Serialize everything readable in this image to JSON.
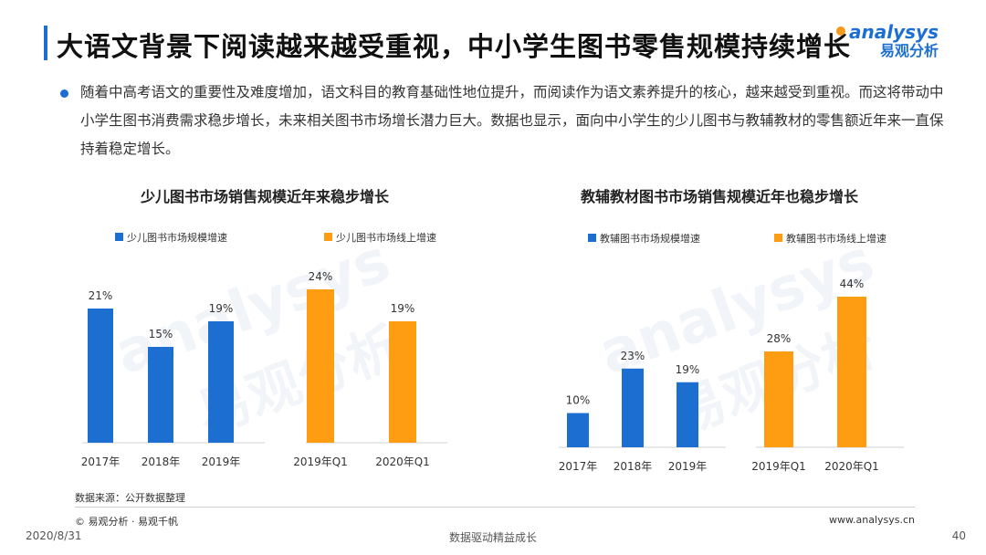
{
  "header": {
    "title": "大语文背景下阅读越来越受重视，中小学生图书零售规模持续增长",
    "logo_en": "analysys",
    "logo_cn": "易观分析"
  },
  "body_text": "随着中高考语文的重要性及难度增加，语文科目的教育基础性地位提升，而阅读作为语文素养提升的核心，越来越受到重视。而这将带动中小学生图书消费需求稳步增长，未来相关图书市场增长潜力巨大。数据也显示，面向中小学生的少儿图书与教辅教材的零售额近年来一直保持着稳定增长。",
  "watermark": {
    "en": "analysys",
    "cn": "易观分析"
  },
  "colors": {
    "blue": "#1c6fd1",
    "orange": "#fe9d12",
    "accent": "#1c6fd1"
  },
  "chart_data": [
    {
      "type": "bar",
      "title": "少儿图书市场销售规模近年来稳步增长",
      "unit": "%",
      "series": [
        {
          "name": "少儿图书市场规模增速",
          "color": "#1c6fd1",
          "categories": [
            "2017年",
            "2018年",
            "2019年"
          ],
          "values": [
            21,
            15,
            19
          ]
        },
        {
          "name": "少儿图书市场线上增速",
          "color": "#fe9d12",
          "categories": [
            "2019年Q1",
            "2020年Q1"
          ],
          "values": [
            24,
            19
          ]
        }
      ]
    },
    {
      "type": "bar",
      "title": "教辅教材图书市场销售规模近年也稳步增长",
      "unit": "%",
      "series": [
        {
          "name": "教辅图书市场规模增速",
          "color": "#1c6fd1",
          "categories": [
            "2017年",
            "2018年",
            "2019年"
          ],
          "values": [
            10,
            23,
            19
          ]
        },
        {
          "name": "教辅图书市场线上增速",
          "color": "#fe9d12",
          "categories": [
            "2019年Q1",
            "2020年Q1"
          ],
          "values": [
            28,
            44
          ]
        }
      ]
    }
  ],
  "footer": {
    "source": "数据来源：公开数据整理",
    "copyright": "© 易观分析 · 易观千帆",
    "website": "www.analysys.cn",
    "date": "2020/8/31",
    "slogan": "数据驱动精益成长",
    "page": "40"
  }
}
